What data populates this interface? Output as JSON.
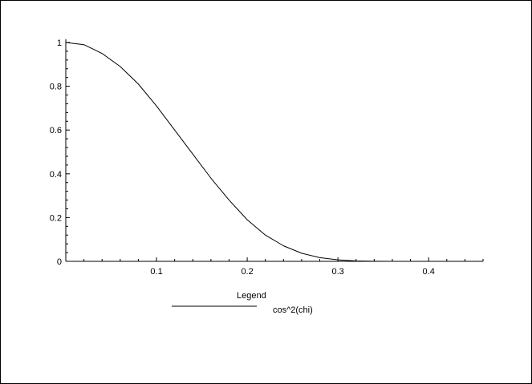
{
  "chart_data": {
    "type": "line",
    "title": "",
    "xlabel": "",
    "ylabel": "",
    "xlim": [
      0,
      0.46
    ],
    "ylim": [
      0,
      1
    ],
    "x_ticks": [
      0.1,
      0.2,
      0.3,
      0.4
    ],
    "x_tick_labels": [
      "0.1",
      "0.2",
      "0.3",
      "0.4"
    ],
    "y_ticks": [
      0,
      0.2,
      0.4,
      0.6,
      0.8,
      1
    ],
    "y_tick_labels": [
      "0",
      "0.2",
      "0.4",
      "0.6",
      "0.8",
      "1"
    ],
    "grid": false,
    "legend": {
      "title": "Legend",
      "placement": "bottom"
    },
    "series": [
      {
        "name": "cos^2(chi)",
        "color": "#000000",
        "x": [
          0,
          0.02,
          0.04,
          0.06,
          0.08,
          0.1,
          0.12,
          0.14,
          0.16,
          0.18,
          0.2,
          0.22,
          0.24,
          0.26,
          0.28,
          0.3,
          0.32,
          0.34,
          0.36,
          0.38,
          0.4,
          0.42,
          0.44,
          0.46
        ],
        "values": [
          1.0,
          0.99,
          0.95,
          0.89,
          0.81,
          0.71,
          0.6,
          0.49,
          0.38,
          0.28,
          0.19,
          0.12,
          0.071,
          0.037,
          0.017,
          0.007,
          0.002,
          0.0006,
          0.0001,
          0.0,
          0.0,
          0.0,
          0.0,
          0.0
        ]
      }
    ]
  }
}
